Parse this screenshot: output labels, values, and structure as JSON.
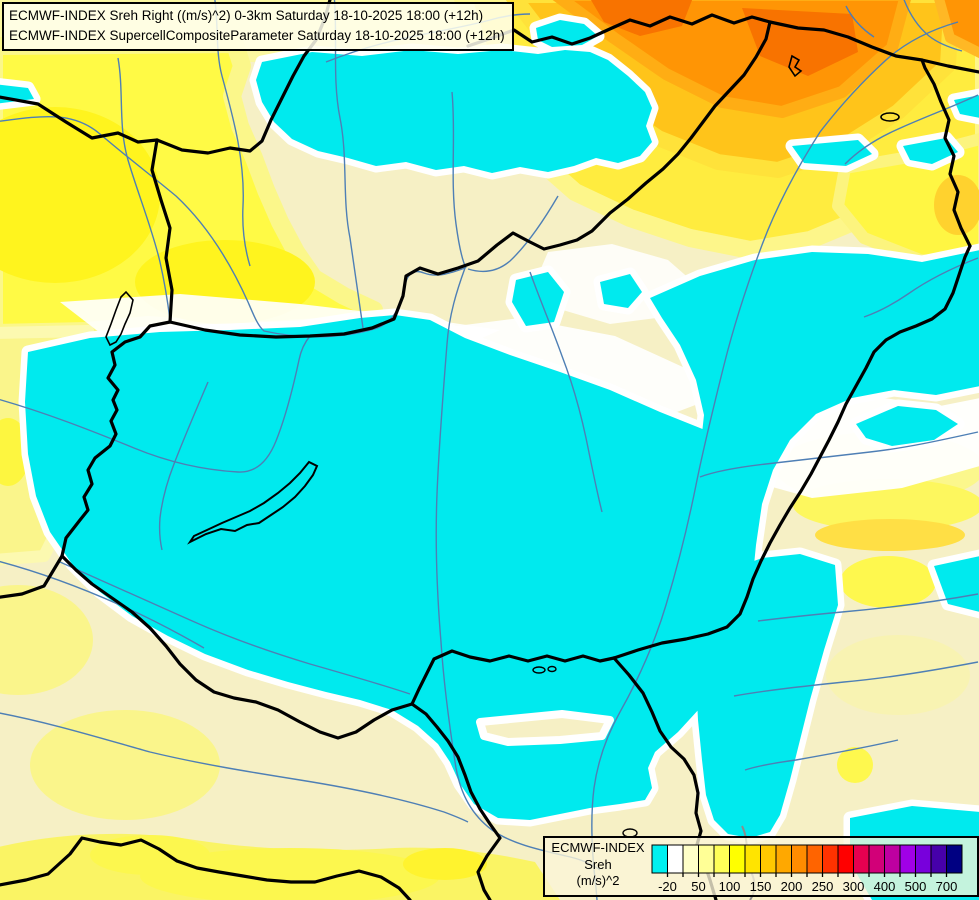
{
  "header": {
    "title_line1": "ECMWF-INDEX Sreh Right ((m/s)^2) 0-3km Saturday 18-10-2025 18:00 (+12h)",
    "title_line2": "ECMWF-INDEX SupercellCompositeParameter Saturday 18-10-2025 18:00 (+12h)"
  },
  "legend": {
    "product_label": "ECMWF-INDEX",
    "parameter_label": "Sreh",
    "units_label": "(m/s)^2",
    "scale_colors": [
      "#00F0F0",
      "#FFFFFF",
      "#FFFFC8",
      "#FFFF96",
      "#FFFF58",
      "#FFFF00",
      "#FFE400",
      "#FFC800",
      "#FFA800",
      "#FF8C00",
      "#FF6400",
      "#FF3200",
      "#FF0000",
      "#E60050",
      "#D20078",
      "#BE00A0",
      "#A000E6",
      "#7800DC",
      "#4600AA",
      "#000082"
    ],
    "tick_labels": [
      "-20",
      "50",
      "100",
      "150",
      "200",
      "250",
      "300",
      "400",
      "500",
      "700"
    ],
    "tick_boundaries": [
      1,
      3,
      5,
      7,
      9,
      11,
      13,
      15,
      17,
      19
    ]
  },
  "map_palette": {
    "negative_sreh_cyan": "#00EAEE",
    "near_zero_white": "#FFFFFF",
    "low_cream": "#F6F0C5",
    "pale_yellow": "#FBF7A0",
    "yellow": "#FFFA45",
    "vivid_yellow": "#FFF41E",
    "gold": "#FFC41A",
    "orange": "#FF9505",
    "deep_orange": "#F87300",
    "border_black": "#000000",
    "river_blue": "#4E7FB5"
  }
}
